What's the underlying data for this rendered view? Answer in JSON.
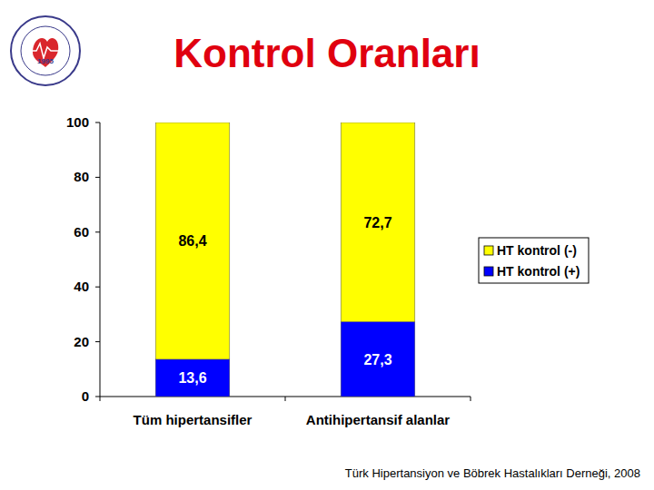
{
  "logo": {
    "year": "1995"
  },
  "chart_data": {
    "type": "bar",
    "title": "Kontrol Oranları",
    "source": "Türk Hipertansiyon ve Böbrek Hastalıkları Derneği, 2008",
    "categories": [
      "Tüm hipertansifler",
      "Antihipertansif alanlar"
    ],
    "series": [
      {
        "name": "HT kontrol (+)",
        "color": "#0000ff",
        "values": [
          13.6,
          27.3
        ],
        "value_labels": [
          "13,6",
          "27,3"
        ]
      },
      {
        "name": "HT kontrol (-)",
        "color": "#ffff00",
        "values": [
          86.4,
          72.7
        ],
        "value_labels": [
          "86,4",
          "72,7"
        ]
      }
    ],
    "stacked": true,
    "data_labels": true,
    "legend": "right",
    "grid": false,
    "ylim": [
      0,
      100
    ],
    "yticks": [
      0,
      20,
      40,
      60,
      80,
      100
    ]
  }
}
